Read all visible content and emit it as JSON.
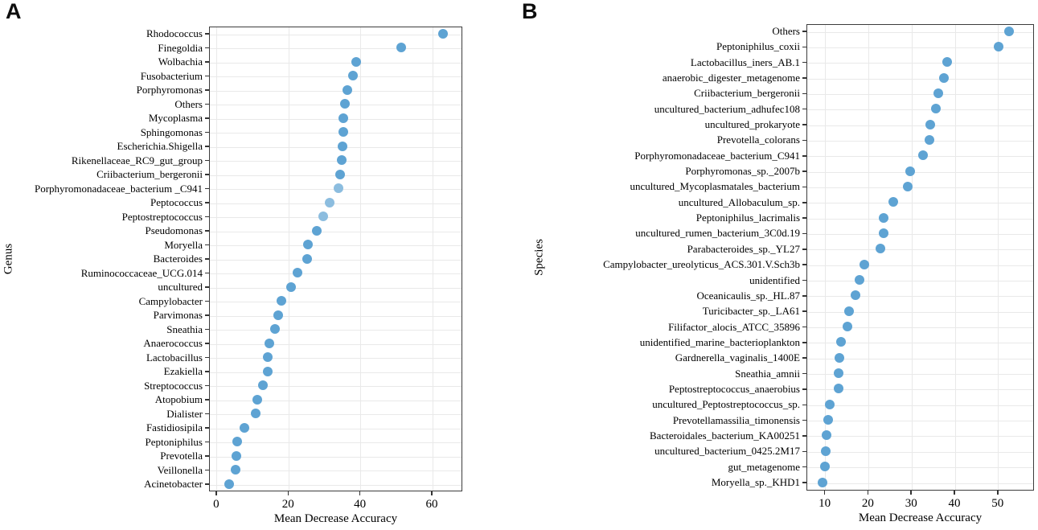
{
  "colors": {
    "dot": "#5EA3D3",
    "dot_light": "#8CBDDF",
    "panel_border": "#3C3C3C",
    "gridline": "#E9E9E9",
    "tick": "#333333",
    "text": "#000000"
  },
  "chart_data": [
    {
      "type": "scatter",
      "title": "A",
      "xlabel": "Mean Decrease Accuracy",
      "ylabel": "Genus",
      "x_ticks": [
        0,
        20,
        40,
        60
      ],
      "xlim": [
        -2,
        68.5
      ],
      "grid": true,
      "legend": "none",
      "categories": [
        "Rhodococcus",
        "Finegoldia",
        "Wolbachia",
        "Fusobacterium",
        "Porphyromonas",
        "Others",
        "Mycoplasma",
        "Sphingomonas",
        "Escherichia.Shigella",
        "Rikenellaceae_RC9_gut_group",
        "Criibacterium_bergeronii",
        "Porphyromonadaceae_bacterium _C941",
        "Peptococcus",
        "Peptostreptococcus",
        "Pseudomonas",
        "Moryella",
        "Bacteroides",
        "Ruminococcaceae_UCG.014",
        "uncultured",
        "Campylobacter",
        "Parvimonas",
        "Sneathia",
        "Anaerococcus",
        "Lactobacillus",
        "Ezakiella",
        "Streptococcus",
        "Atopobium",
        "Dialister",
        "Fastidiosipila",
        "Peptoniphilus",
        "Prevotella",
        "Veillonella",
        "Acinetobacter"
      ],
      "values": [
        63.2,
        51.5,
        39.0,
        38.2,
        36.5,
        36.0,
        35.5,
        35.4,
        35.3,
        35.0,
        34.5,
        34.2,
        31.6,
        30.0,
        28.1,
        25.6,
        25.4,
        22.7,
        21.0,
        18.3,
        17.3,
        16.4,
        14.9,
        14.5,
        14.4,
        13.0,
        11.5,
        11.1,
        7.9,
        5.9,
        5.7,
        5.6,
        3.8
      ],
      "light_value_indices": [
        11,
        12,
        13
      ]
    },
    {
      "type": "scatter",
      "title": "B",
      "xlabel": "Mean Decrease Accuracy",
      "ylabel": "Species",
      "x_ticks": [
        10,
        20,
        30,
        40,
        50
      ],
      "xlim": [
        5.8,
        58.4
      ],
      "grid": true,
      "legend": "none",
      "categories": [
        "Others",
        "Peptoniphilus_coxii",
        "Lactobacillus_iners_AB.1",
        "anaerobic_digester_metagenome",
        "Criibacterium_bergeronii",
        "uncultured_bacterium_adhufec108",
        "uncultured_prokaryote",
        "Prevotella_colorans",
        "Porphyromonadaceae_bacterium_C941",
        "Porphyromonas_sp._2007b",
        "uncultured_Mycoplasmatales_bacterium",
        "uncultured_Allobaculum_sp.",
        "Peptoniphilus_lacrimalis",
        "uncultured_rumen_bacterium_3C0d.19",
        "Parabacteroides_sp._YL27",
        "Campylobacter_ureolyticus_ACS.301.V.Sch3b",
        "unidentified",
        "Oceanicaulis_sp._HL.87",
        "Turicibacter_sp._LA61",
        "Filifactor_alocis_ATCC_35896",
        "unidentified_marine_bacterioplankton",
        "Gardnerella_vaginalis_1400E",
        "Sneathia_amnii",
        "Peptostreptococcus_anaerobius",
        "uncultured_Peptostreptococcus_sp.",
        "Prevotellamassilia_timonensis",
        "Bacteroidales_bacterium_KA00251",
        "uncultured_bacterium_0425.2M17",
        "gut_metagenome",
        "Moryella_sp._KHD1"
      ],
      "values": [
        52.7,
        50.3,
        38.5,
        37.6,
        36.4,
        35.9,
        34.6,
        34.4,
        32.8,
        29.8,
        29.4,
        25.9,
        23.8,
        23.7,
        22.9,
        19.2,
        18.1,
        17.2,
        15.8,
        15.4,
        13.9,
        13.5,
        13.4,
        13.3,
        11.3,
        10.9,
        10.6,
        10.3,
        10.2,
        9.7
      ],
      "light_value_indices": []
    }
  ]
}
